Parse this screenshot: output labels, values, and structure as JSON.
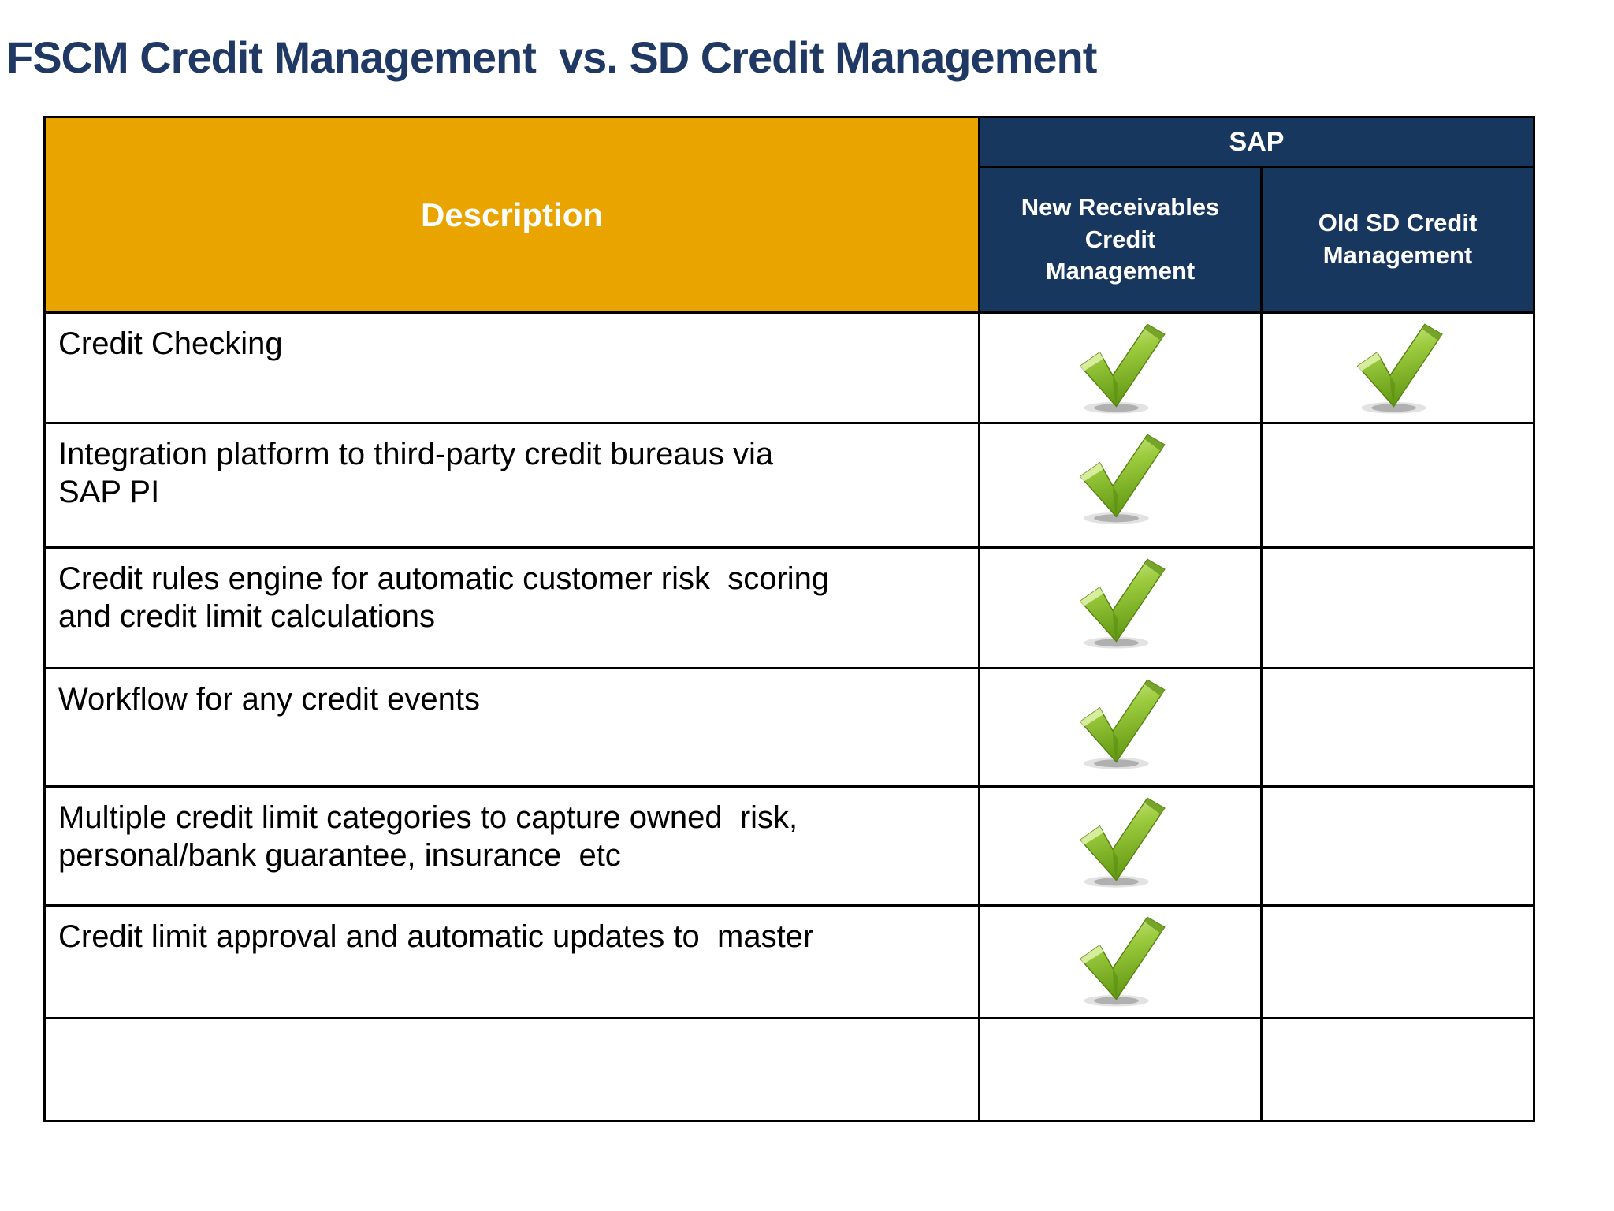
{
  "title": "FSCM Credit Management  vs. SD Credit Management",
  "table": {
    "description_header": "Description",
    "group_header": "SAP",
    "columns": [
      {
        "label": "New Receivables\nCredit\nManagement"
      },
      {
        "label": "Old SD Credit\nManagement"
      }
    ],
    "check_icon": "green-check-icon",
    "rows": [
      {
        "description_lines": [
          "Credit Checking"
        ],
        "new_receivables_check": true,
        "old_sd_check": true
      },
      {
        "description_lines": [
          "Integration platform to third-party credit bureaus via",
          "SAP PI"
        ],
        "new_receivables_check": true,
        "old_sd_check": false
      },
      {
        "description_lines": [
          "Credit rules engine for automatic customer risk  scoring",
          "and credit limit calculations"
        ],
        "new_receivables_check": true,
        "old_sd_check": false
      },
      {
        "description_lines": [
          "Workflow for any credit events"
        ],
        "new_receivables_check": true,
        "old_sd_check": false
      },
      {
        "description_lines": [
          "Multiple credit limit categories to capture owned  risk,",
          "personal/bank guarantee, insurance  etc"
        ],
        "new_receivables_check": true,
        "old_sd_check": false
      },
      {
        "description_lines": [
          "Credit limit approval and automatic updates to  master"
        ],
        "new_receivables_check": true,
        "old_sd_check": false
      },
      {
        "description_lines": [
          ""
        ],
        "new_receivables_check": false,
        "old_sd_check": false
      }
    ]
  },
  "colors": {
    "title": "#1F3864",
    "header_gold": "#E9A400",
    "header_navy": "#17375E",
    "check_green": "#9CCB3E",
    "border": "#000000"
  }
}
